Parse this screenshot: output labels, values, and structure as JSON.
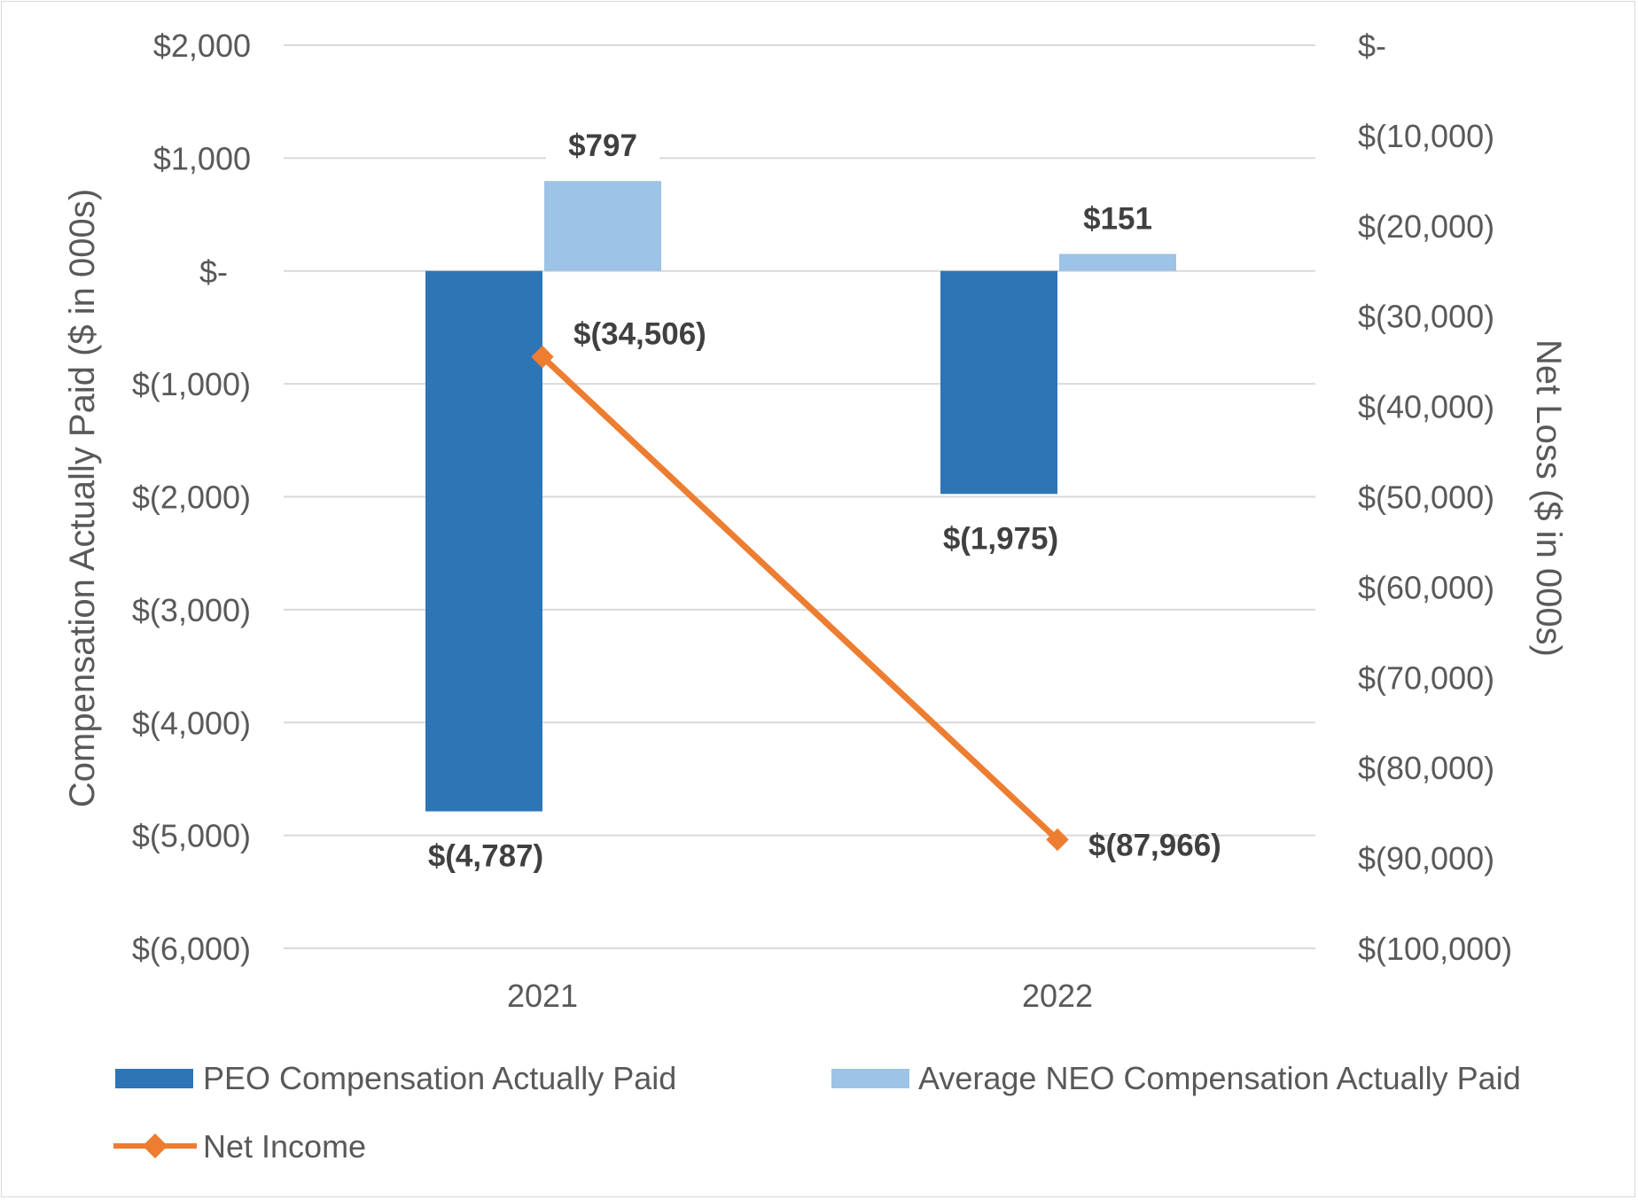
{
  "chart_data": {
    "type": "bar",
    "categories": [
      "2021",
      "2022"
    ],
    "series": [
      {
        "name": "PEO Compensation Actually Paid",
        "axis": "left",
        "kind": "bar",
        "color": "#2e75b6",
        "values": [
          -4787,
          -1975
        ],
        "labels": [
          "$(4,787)",
          "$(1,975)"
        ]
      },
      {
        "name": "Average NEO Compensation Actually Paid",
        "axis": "left",
        "kind": "bar",
        "color": "#9dc3e6",
        "values": [
          797,
          151
        ],
        "labels": [
          "$797",
          "$151"
        ]
      },
      {
        "name": "Net Income",
        "axis": "right",
        "kind": "line",
        "color": "#ed7d31",
        "values": [
          -34506,
          -87966
        ],
        "labels": [
          "$(34,506)",
          "$(87,966)"
        ]
      }
    ],
    "ylabel": "Compensation Actually Paid ($ in 000s)",
    "y2label": "Net Loss ($ in 000s)",
    "ylim": [
      -6000,
      2000
    ],
    "y2lim": [
      -100000,
      0
    ],
    "yticks": [
      {
        "value": 2000,
        "label": "$2,000"
      },
      {
        "value": 1000,
        "label": "$1,000"
      },
      {
        "value": 0,
        "label": "$-"
      },
      {
        "value": -1000,
        "label": "$(1,000)"
      },
      {
        "value": -2000,
        "label": "$(2,000)"
      },
      {
        "value": -3000,
        "label": "$(3,000)"
      },
      {
        "value": -4000,
        "label": "$(4,000)"
      },
      {
        "value": -5000,
        "label": "$(5,000)"
      },
      {
        "value": -6000,
        "label": "$(6,000)"
      }
    ],
    "y2ticks": [
      {
        "value": 0,
        "label": "$-"
      },
      {
        "value": -10000,
        "label": "$(10,000)"
      },
      {
        "value": -20000,
        "label": "$(20,000)"
      },
      {
        "value": -30000,
        "label": "$(30,000)"
      },
      {
        "value": -40000,
        "label": "$(40,000)"
      },
      {
        "value": -50000,
        "label": "$(50,000)"
      },
      {
        "value": -60000,
        "label": "$(60,000)"
      },
      {
        "value": -70000,
        "label": "$(70,000)"
      },
      {
        "value": -80000,
        "label": "$(80,000)"
      },
      {
        "value": -90000,
        "label": "$(90,000)"
      },
      {
        "value": -100000,
        "label": "$(100,000)"
      }
    ],
    "grid": true,
    "legend_position": "bottom"
  }
}
